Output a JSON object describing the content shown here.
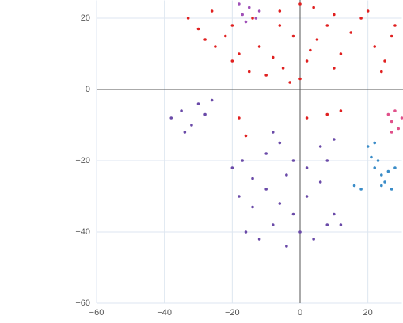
{
  "chart_data": {
    "type": "scatter",
    "xlim": [
      -60,
      30
    ],
    "ylim": [
      -60,
      25
    ],
    "xticks": [
      {
        "value": -60,
        "label": "−60"
      },
      {
        "value": -40,
        "label": "−40"
      },
      {
        "value": -20,
        "label": "−20"
      },
      0,
      20
    ],
    "yticks": [
      {
        "value": -60,
        "label": "−60"
      },
      {
        "value": -40,
        "label": "−40"
      },
      {
        "value": -20,
        "label": "−20"
      },
      0,
      20
    ],
    "grid": true,
    "series": [
      {
        "color": "#e02020",
        "x": [
          -33,
          -30,
          -28,
          -25,
          -22,
          -20,
          -18,
          -15,
          -12,
          -10,
          -8,
          -5,
          -3,
          0,
          2,
          5,
          8,
          10,
          12,
          15,
          18,
          20,
          22,
          25,
          28,
          -26,
          -20,
          -14,
          -6,
          0,
          4,
          10,
          -2,
          -6,
          3,
          -18,
          -16,
          2,
          8,
          12,
          24,
          27
        ],
        "values": [
          20,
          17,
          14,
          12,
          15,
          8,
          10,
          5,
          12,
          4,
          9,
          6,
          2,
          3,
          8,
          14,
          18,
          6,
          10,
          16,
          20,
          22,
          12,
          8,
          18,
          22,
          18,
          20,
          22,
          24,
          23,
          21,
          15,
          18,
          11,
          -8,
          -13,
          -8,
          -7,
          -6,
          5,
          15
        ]
      },
      {
        "color": "#6a4aa8",
        "x": [
          -38,
          -35,
          -32,
          -30,
          -28,
          -26,
          -34,
          -20,
          -17,
          -14,
          -10,
          -6,
          -2,
          2,
          6,
          10,
          -18,
          -14,
          -10,
          -6,
          -2,
          2,
          6,
          10,
          12,
          -16,
          -12,
          -8,
          -4,
          0,
          4,
          8,
          -8,
          -4,
          8
        ],
        "values": [
          -8,
          -6,
          -10,
          -4,
          -7,
          -3,
          -12,
          -22,
          -20,
          -25,
          -18,
          -15,
          -20,
          -22,
          -16,
          -14,
          -30,
          -33,
          -28,
          -32,
          -35,
          -30,
          -26,
          -35,
          -38,
          -40,
          -42,
          -38,
          -44,
          -40,
          -42,
          -38,
          -12,
          -24,
          -20
        ]
      },
      {
        "color": "#3a8cc8",
        "x": [
          20,
          21,
          22,
          23,
          24,
          25,
          26,
          27,
          22,
          24,
          16,
          18,
          28
        ],
        "values": [
          -16,
          -19,
          -22,
          -20,
          -24,
          -26,
          -23,
          -28,
          -15,
          -27,
          -27,
          -28,
          -22
        ]
      },
      {
        "color": "#e0508a",
        "x": [
          26,
          27,
          28,
          29,
          30,
          27
        ],
        "values": [
          -7,
          -9,
          -6,
          -11,
          -8,
          -12
        ]
      },
      {
        "color": "#a050b8",
        "x": [
          -18,
          -17,
          -15,
          -13,
          -12,
          -16
        ],
        "values": [
          24,
          21,
          23,
          20,
          22,
          19
        ]
      }
    ]
  }
}
